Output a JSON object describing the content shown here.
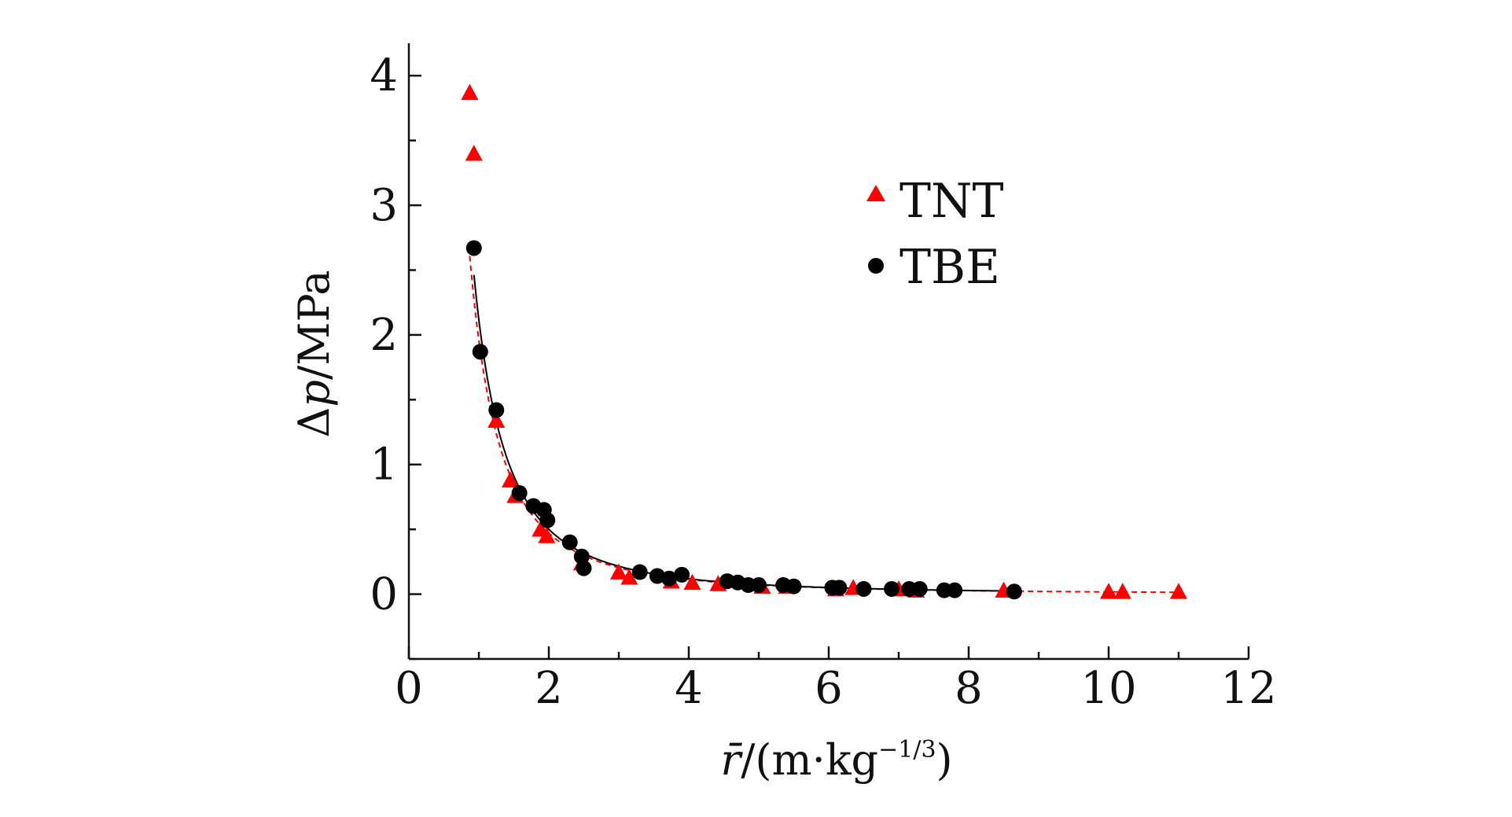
{
  "chart_data": {
    "type": "scatter",
    "xlabel_parts": {
      "symbol": "r̄",
      "slash": "/",
      "unit_pre": "(m·kg",
      "unit_sup": "−1/3",
      "unit_post": ")"
    },
    "ylabel_parts": {
      "delta": "Δ",
      "symbol": "p",
      "unit": "/MPa"
    },
    "xlim": [
      0,
      12
    ],
    "ylim": [
      -0.5,
      4.25
    ],
    "x_ticks": [
      "0",
      "2",
      "4",
      "6",
      "8",
      "10",
      "12"
    ],
    "y_ticks": [
      "0",
      "1",
      "2",
      "3",
      "4"
    ],
    "legend_position": "upper-right",
    "series": [
      {
        "name": "TNT",
        "marker": "triangle",
        "color": "#ff0000",
        "line_style": "dashed",
        "x": [
          0.87,
          0.93,
          1.25,
          1.45,
          1.52,
          1.88,
          1.97,
          2.47,
          3.0,
          3.15,
          3.75,
          4.05,
          4.42,
          5.05,
          5.4,
          6.1,
          6.35,
          7.0,
          7.25,
          8.5,
          10.0,
          10.2,
          11.0
        ],
        "y": [
          3.87,
          3.4,
          1.34,
          0.88,
          0.76,
          0.5,
          0.45,
          0.24,
          0.17,
          0.13,
          0.1,
          0.09,
          0.08,
          0.06,
          0.06,
          0.04,
          0.05,
          0.04,
          0.03,
          0.03,
          0.02,
          0.02,
          0.02
        ]
      },
      {
        "name": "TBE",
        "marker": "circle",
        "color": "#000000",
        "line_style": "solid",
        "x": [
          0.93,
          1.02,
          1.25,
          1.58,
          1.78,
          1.93,
          1.98,
          2.3,
          2.47,
          2.5,
          3.3,
          3.55,
          3.72,
          3.9,
          4.55,
          4.7,
          4.85,
          5.0,
          5.35,
          5.5,
          6.05,
          6.15,
          6.5,
          6.9,
          7.15,
          7.3,
          7.65,
          7.8,
          8.65
        ],
        "y": [
          2.67,
          1.87,
          1.42,
          0.78,
          0.68,
          0.65,
          0.57,
          0.4,
          0.29,
          0.2,
          0.17,
          0.14,
          0.12,
          0.15,
          0.1,
          0.09,
          0.07,
          0.07,
          0.07,
          0.06,
          0.05,
          0.05,
          0.04,
          0.04,
          0.04,
          0.04,
          0.03,
          0.03,
          0.02
        ]
      }
    ]
  }
}
